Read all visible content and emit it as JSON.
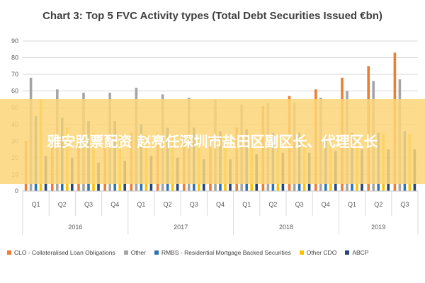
{
  "chart_data": {
    "type": "bar",
    "title": "Chart 3: Top 5 FVC Activity types (Total Debt Securities Issued €bn)",
    "ylim": [
      0,
      90
    ],
    "yticks": [
      0,
      10,
      20,
      30,
      40,
      50,
      60,
      70,
      80,
      90
    ],
    "categories": [
      "Q1",
      "Q2",
      "Q3",
      "Q4",
      "Q1",
      "Q2",
      "Q3",
      "Q4",
      "Q1",
      "Q2",
      "Q3",
      "Q4",
      "Q1",
      "Q2",
      "Q3"
    ],
    "year_groups": [
      {
        "label": "2016",
        "count": 4
      },
      {
        "label": "2017",
        "count": 4
      },
      {
        "label": "2018",
        "count": 4
      },
      {
        "label": "2019",
        "count": 3
      }
    ],
    "series": [
      {
        "name": "CLO - Collateralised Loan Obligations",
        "color": "#ED7D31",
        "values": [
          30,
          32,
          34,
          33,
          35,
          35,
          34,
          33,
          38,
          51,
          57,
          61,
          68,
          75,
          83
        ]
      },
      {
        "name": "Other",
        "color": "#A5A5A5",
        "values": [
          68,
          61,
          59,
          59,
          62,
          58,
          56,
          55,
          52,
          53,
          53,
          56,
          60,
          66,
          67
        ]
      },
      {
        "name": "RMBS - Residential Mortgage Backed Securities",
        "color": "#2E75B6",
        "values": [
          45,
          44,
          42,
          42,
          40,
          38,
          38,
          36,
          37,
          35,
          35,
          34,
          35,
          35,
          36
        ]
      },
      {
        "name": "Other CDO",
        "color": "#FFC000",
        "values": [
          55,
          38,
          35,
          33,
          34,
          33,
          31,
          30,
          31,
          32,
          33,
          32,
          33,
          34,
          34
        ]
      },
      {
        "name": "ABCP",
        "color": "#264478",
        "values": [
          21,
          20,
          17,
          18,
          21,
          20,
          19,
          19,
          22,
          23,
          23,
          24,
          25,
          25,
          25
        ]
      }
    ],
    "grid": true,
    "legend_position": "bottom"
  },
  "overlay": {
    "text": "雅安股票配资 赵亮任深圳市盐田区副区长、代理区长"
  }
}
